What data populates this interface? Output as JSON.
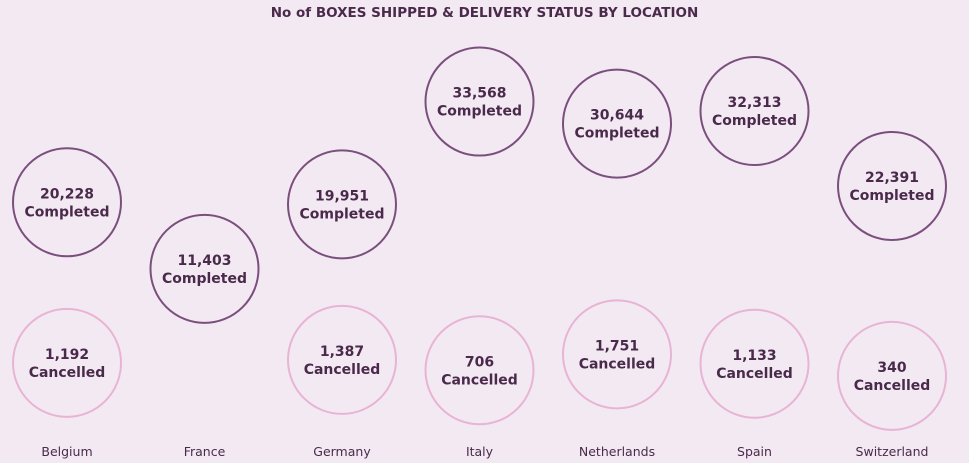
{
  "chart_data": {
    "type": "scatter",
    "title": "No of BOXES SHIPPED & DELIVERY STATUS BY LOCATION",
    "categories": [
      "Belgium",
      "France",
      "Germany",
      "Italy",
      "Netherlands",
      "Spain",
      "Switzerland"
    ],
    "series": [
      {
        "name": "Completed",
        "values": [
          20228,
          11403,
          19951,
          33568,
          30644,
          32313,
          22391
        ],
        "labels": [
          "20,228",
          "11,403",
          "19,951",
          "33,568",
          "30,644",
          "32,313",
          "22,391"
        ],
        "color": "#7b4f7d"
      },
      {
        "name": "Cancelled",
        "values": [
          1192,
          null,
          1387,
          706,
          1751,
          1133,
          340
        ],
        "labels": [
          "1,192",
          "",
          "1,387",
          "706",
          "1,751",
          "1,133",
          "340"
        ],
        "color": "#e8b4d4"
      }
    ],
    "grid": false,
    "legend": "none"
  }
}
